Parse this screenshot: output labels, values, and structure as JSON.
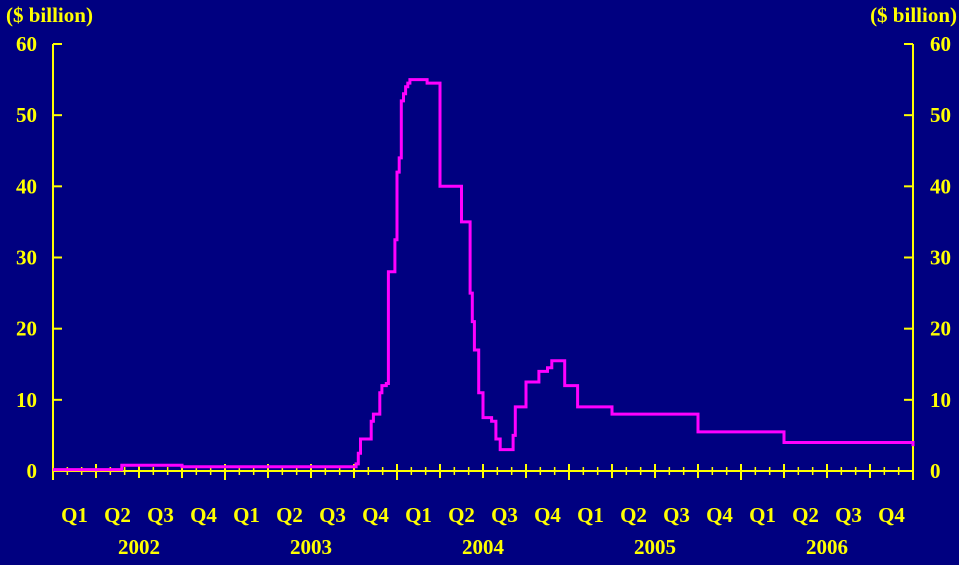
{
  "chart_data": {
    "type": "line",
    "title": "",
    "left_axis_unit": "($ billion)",
    "right_axis_unit": "($ billion)",
    "ylim": [
      0,
      60
    ],
    "y_ticks": [
      "0",
      "10",
      "20",
      "30",
      "40",
      "50",
      "60"
    ],
    "quarter_labels": [
      "Q1",
      "Q2",
      "Q3",
      "Q4",
      "Q1",
      "Q2",
      "Q3",
      "Q4",
      "Q1",
      "Q2",
      "Q3",
      "Q4",
      "Q1",
      "Q2",
      "Q3",
      "Q4",
      "Q1",
      "Q2",
      "Q3",
      "Q4"
    ],
    "year_labels": [
      "2002",
      "2003",
      "2004",
      "2005",
      "2006"
    ],
    "grid": false,
    "colors": {
      "background": "#000080",
      "axis": "#FFFF00",
      "series": "#FF00FF"
    },
    "series": [
      {
        "step": true,
        "x": [
          0.0,
          1.0,
          1.6,
          2.0,
          3.0,
          3.2,
          4.0,
          5.0,
          6.0,
          6.6,
          7.0,
          7.05,
          7.1,
          7.15,
          7.2,
          7.4,
          7.45,
          7.6,
          7.65,
          7.7,
          7.75,
          7.8,
          7.9,
          7.95,
          8.0,
          8.05,
          8.1,
          8.15,
          8.2,
          8.25,
          8.3,
          8.5,
          8.6,
          8.7,
          8.75,
          9.0,
          9.5,
          9.6,
          9.65,
          9.7,
          9.75,
          9.8,
          9.9,
          10.0,
          10.1,
          10.2,
          10.3,
          10.4,
          10.5,
          10.6,
          10.7,
          10.75,
          11.0,
          11.3,
          11.4,
          11.5,
          11.6,
          11.7,
          11.8,
          11.9,
          12.2,
          12.3,
          13.0,
          15.0,
          17.0,
          18.0,
          20.0
        ],
        "y": [
          0.2,
          0.2,
          0.8,
          0.8,
          0.6,
          0.6,
          0.6,
          0.6,
          0.6,
          0.6,
          0.6,
          1.0,
          2.5,
          4.5,
          4.5,
          7.0,
          8.0,
          11.0,
          12.0,
          12.0,
          12.3,
          28.0,
          28.0,
          32.5,
          42.0,
          44.0,
          52.0,
          53.0,
          54.0,
          54.5,
          55.0,
          55.0,
          55.0,
          54.5,
          54.5,
          40.0,
          35.0,
          35.0,
          35.0,
          25.0,
          21.0,
          17.0,
          11.0,
          7.5,
          7.5,
          7.0,
          4.5,
          3.0,
          3.0,
          3.0,
          5.0,
          9.0,
          12.5,
          14.0,
          14.0,
          14.5,
          15.5,
          15.5,
          15.5,
          12.0,
          9.0,
          9.0,
          8.0,
          5.5,
          4.0,
          4.0,
          3.5
        ]
      }
    ]
  }
}
